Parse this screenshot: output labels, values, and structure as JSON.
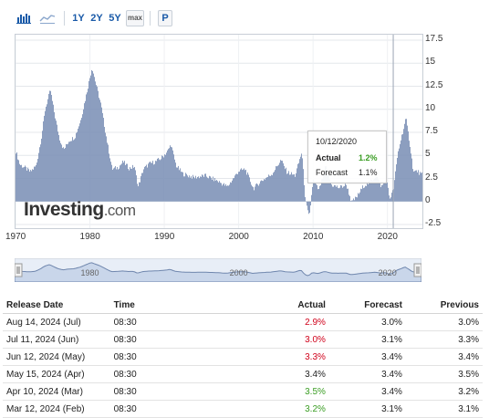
{
  "toolbar": {
    "icons": [
      "bar-chart-icon",
      "line-chart-icon"
    ],
    "ranges": [
      "1Y",
      "2Y",
      "5Y"
    ],
    "max_label": "max",
    "p_label": "P"
  },
  "chart_data": {
    "type": "bar",
    "title": "",
    "x_ticks": [
      "1970",
      "1980",
      "1990",
      "2000",
      "2010",
      "2020"
    ],
    "y_ticks": [
      "17.5",
      "15",
      "12.5",
      "10",
      "7.5",
      "5",
      "2.5",
      "0",
      "-2.5"
    ],
    "ylim": [
      -2.5,
      17.5
    ],
    "xlim": [
      1970,
      2024.7
    ],
    "series_color": "#7f93b8",
    "anchors": [
      [
        1970.0,
        5.6
      ],
      [
        1970.6,
        4.0
      ],
      [
        1971.4,
        3.6
      ],
      [
        1972.0,
        3.2
      ],
      [
        1972.8,
        3.9
      ],
      [
        1973.5,
        7.0
      ],
      [
        1974.0,
        10.0
      ],
      [
        1974.7,
        12.1
      ],
      [
        1975.3,
        9.3
      ],
      [
        1975.9,
        6.9
      ],
      [
        1976.5,
        5.6
      ],
      [
        1977.2,
        6.6
      ],
      [
        1978.0,
        7.0
      ],
      [
        1978.8,
        8.9
      ],
      [
        1979.5,
        11.5
      ],
      [
        1980.3,
        14.6
      ],
      [
        1980.9,
        12.5
      ],
      [
        1981.5,
        10.5
      ],
      [
        1982.3,
        6.6
      ],
      [
        1983.0,
        3.5
      ],
      [
        1983.8,
        3.7
      ],
      [
        1984.5,
        4.3
      ],
      [
        1985.3,
        3.6
      ],
      [
        1986.0,
        3.8
      ],
      [
        1986.5,
        1.6
      ],
      [
        1987.2,
        3.5
      ],
      [
        1988.0,
        4.1
      ],
      [
        1988.8,
        4.3
      ],
      [
        1989.6,
        4.7
      ],
      [
        1990.5,
        5.5
      ],
      [
        1990.9,
        6.2
      ],
      [
        1991.6,
        3.9
      ],
      [
        1992.5,
        3.0
      ],
      [
        1994.0,
        2.6
      ],
      [
        1995.5,
        2.8
      ],
      [
        1997.0,
        2.3
      ],
      [
        1998.5,
        1.6
      ],
      [
        2000.0,
        3.3
      ],
      [
        2000.9,
        3.5
      ],
      [
        2002.0,
        1.4
      ],
      [
        2003.0,
        2.2
      ],
      [
        2004.5,
        3.0
      ],
      [
        2005.7,
        4.5
      ],
      [
        2006.5,
        3.2
      ],
      [
        2007.6,
        2.8
      ],
      [
        2008.5,
        5.4
      ],
      [
        2009.0,
        0.0
      ],
      [
        2009.5,
        -1.8
      ],
      [
        2010.0,
        2.3
      ],
      [
        2010.8,
        1.2
      ],
      [
        2011.7,
        3.8
      ],
      [
        2012.5,
        1.8
      ],
      [
        2013.5,
        1.5
      ],
      [
        2014.5,
        1.8
      ],
      [
        2015.2,
        -0.1
      ],
      [
        2015.9,
        0.5
      ],
      [
        2016.8,
        1.7
      ],
      [
        2017.5,
        2.0
      ],
      [
        2018.5,
        2.8
      ],
      [
        2019.2,
        1.6
      ],
      [
        2019.9,
        2.3
      ],
      [
        2020.3,
        0.3
      ],
      [
        2020.8,
        1.2
      ],
      [
        2021.4,
        5.2
      ],
      [
        2021.9,
        7.0
      ],
      [
        2022.5,
        9.0
      ],
      [
        2023.0,
        6.4
      ],
      [
        2023.5,
        3.2
      ],
      [
        2024.0,
        3.3
      ],
      [
        2024.6,
        2.9
      ]
    ],
    "tooltip": {
      "date": "10/12/2020",
      "actual_label": "Actual",
      "actual_value": "1.2%",
      "forecast_label": "Forecast",
      "forecast_value": "1.1%"
    },
    "navigator_ticks": [
      "1980",
      "2000",
      "2020"
    ]
  },
  "logo": {
    "main": "Investing",
    "suffix": ".com"
  },
  "colors": {
    "green": "#3a9d23",
    "red": "#d0021b",
    "link": "#1a5aa8"
  },
  "table": {
    "headers": {
      "release_date": "Release Date",
      "time": "Time",
      "actual": "Actual",
      "forecast": "Forecast",
      "previous": "Previous"
    },
    "rows": [
      {
        "date": "Aug 14, 2024 (Jul)",
        "time": "08:30",
        "actual": "2.9%",
        "actual_color": "red",
        "forecast": "3.0%",
        "previous": "3.0%"
      },
      {
        "date": "Jul 11, 2024 (Jun)",
        "time": "08:30",
        "actual": "3.0%",
        "actual_color": "red",
        "forecast": "3.1%",
        "previous": "3.3%"
      },
      {
        "date": "Jun 12, 2024 (May)",
        "time": "08:30",
        "actual": "3.3%",
        "actual_color": "red",
        "forecast": "3.4%",
        "previous": "3.4%"
      },
      {
        "date": "May 15, 2024 (Apr)",
        "time": "08:30",
        "actual": "3.4%",
        "actual_color": "",
        "forecast": "3.4%",
        "previous": "3.5%"
      },
      {
        "date": "Apr 10, 2024 (Mar)",
        "time": "08:30",
        "actual": "3.5%",
        "actual_color": "green",
        "forecast": "3.4%",
        "previous": "3.2%"
      },
      {
        "date": "Mar 12, 2024 (Feb)",
        "time": "08:30",
        "actual": "3.2%",
        "actual_color": "green",
        "forecast": "3.1%",
        "previous": "3.1%"
      }
    ]
  }
}
